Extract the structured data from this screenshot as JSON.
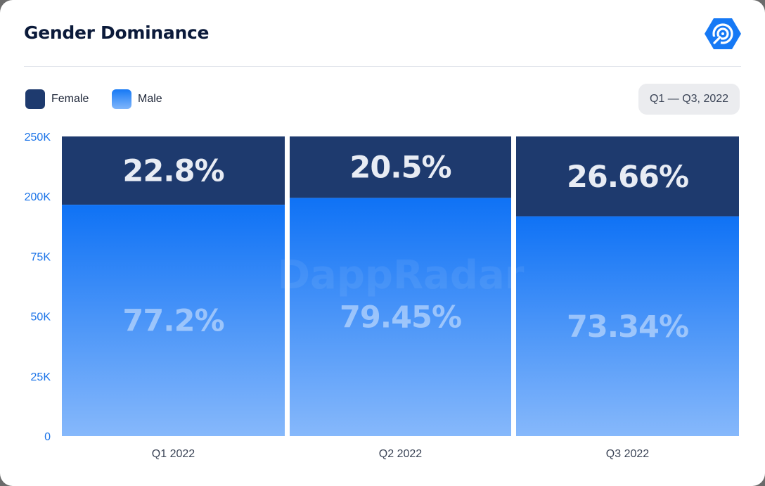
{
  "header": {
    "title": "Gender Dominance",
    "logo_icon": "dappradar-logo-icon",
    "brand_color": "#1679f5"
  },
  "legend": [
    {
      "label": "Female",
      "color": "#1e3a6e"
    },
    {
      "label": "Male",
      "color": "#3b8ef7"
    }
  ],
  "period_badge": "Q1 — Q3, 2022",
  "watermark": "DappRadar",
  "chart_data": {
    "type": "bar",
    "stacked": true,
    "normalized": true,
    "title": "Gender Dominance",
    "categories": [
      "Q1 2022",
      "Q2 2022",
      "Q3 2022"
    ],
    "series": [
      {
        "name": "Male",
        "values": [
          77.2,
          79.45,
          73.34
        ],
        "labels": [
          "77.2%",
          "79.45%",
          "73.34%"
        ],
        "color": "#1679f5"
      },
      {
        "name": "Female",
        "values": [
          22.8,
          20.5,
          26.66
        ],
        "labels": [
          "22.8%",
          "20.5%",
          "26.66%"
        ],
        "color": "#1e3a6e"
      }
    ],
    "y_tick_labels": [
      "0",
      "25K",
      "50K",
      "75K",
      "200K",
      "250K"
    ],
    "xlabel": "",
    "ylabel": "",
    "grid": false,
    "legend_position": "top-left"
  }
}
